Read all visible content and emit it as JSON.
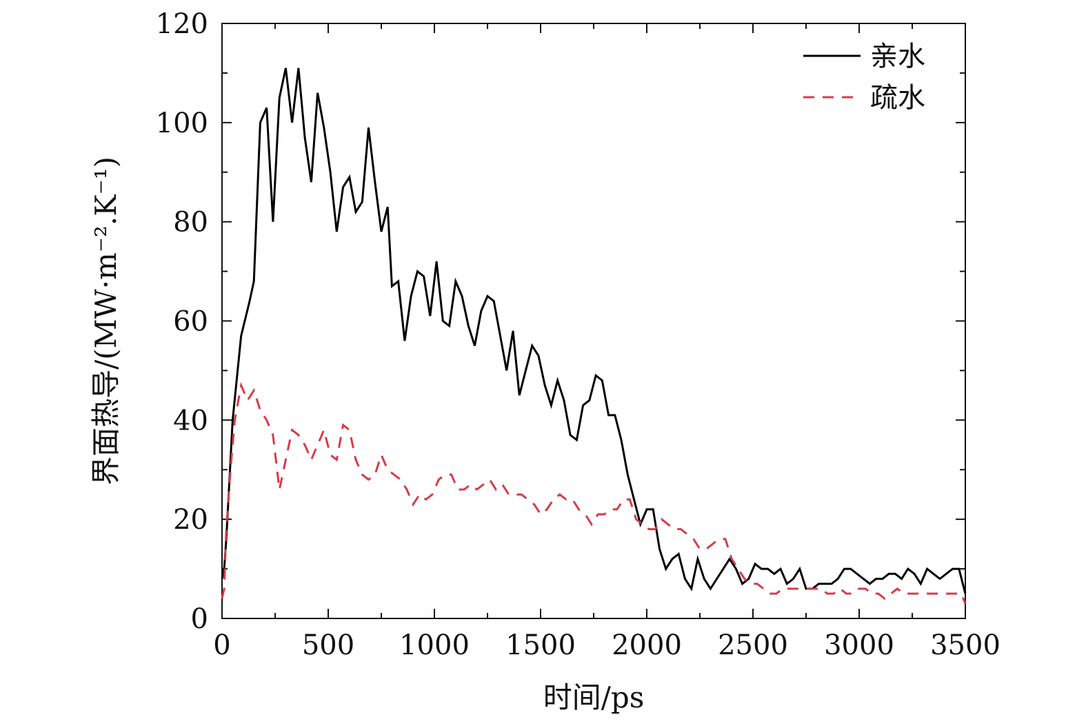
{
  "chart_data": {
    "type": "line",
    "xlabel": "时间/ps",
    "ylabel": "界面热导/(MW·m⁻².K⁻¹)",
    "xlim": [
      0,
      3500
    ],
    "ylim": [
      0,
      120
    ],
    "xticks": [
      0,
      500,
      1000,
      1500,
      2000,
      2500,
      3000,
      3500
    ],
    "yticks": [
      0,
      20,
      40,
      60,
      80,
      100,
      120
    ],
    "grid": false,
    "legend_position": "top-right",
    "series": [
      {
        "name": "亲水",
        "color": "#000000",
        "style": "solid",
        "points": [
          [
            0,
            8
          ],
          [
            10,
            10
          ],
          [
            20,
            16
          ],
          [
            50,
            40
          ],
          [
            90,
            57
          ],
          [
            130,
            64
          ],
          [
            150,
            68
          ],
          [
            180,
            100
          ],
          [
            210,
            103
          ],
          [
            240,
            80
          ],
          [
            270,
            105
          ],
          [
            300,
            111
          ],
          [
            330,
            100
          ],
          [
            360,
            111
          ],
          [
            390,
            97
          ],
          [
            420,
            88
          ],
          [
            450,
            106
          ],
          [
            480,
            99
          ],
          [
            510,
            90
          ],
          [
            540,
            78
          ],
          [
            570,
            87
          ],
          [
            600,
            89
          ],
          [
            630,
            82
          ],
          [
            660,
            84
          ],
          [
            690,
            99
          ],
          [
            720,
            88
          ],
          [
            750,
            78
          ],
          [
            780,
            83
          ],
          [
            800,
            67
          ],
          [
            830,
            68
          ],
          [
            860,
            56
          ],
          [
            890,
            65
          ],
          [
            920,
            70
          ],
          [
            950,
            69
          ],
          [
            980,
            61
          ],
          [
            1010,
            72
          ],
          [
            1040,
            60
          ],
          [
            1070,
            59
          ],
          [
            1100,
            68
          ],
          [
            1130,
            65
          ],
          [
            1160,
            59
          ],
          [
            1190,
            55
          ],
          [
            1220,
            62
          ],
          [
            1250,
            65
          ],
          [
            1280,
            64
          ],
          [
            1310,
            57
          ],
          [
            1340,
            50
          ],
          [
            1370,
            58
          ],
          [
            1400,
            45
          ],
          [
            1430,
            50
          ],
          [
            1460,
            55
          ],
          [
            1490,
            53
          ],
          [
            1520,
            47
          ],
          [
            1550,
            43
          ],
          [
            1580,
            48
          ],
          [
            1610,
            44
          ],
          [
            1640,
            37
          ],
          [
            1670,
            36
          ],
          [
            1700,
            43
          ],
          [
            1730,
            44
          ],
          [
            1760,
            49
          ],
          [
            1790,
            48
          ],
          [
            1820,
            41
          ],
          [
            1850,
            41
          ],
          [
            1880,
            36
          ],
          [
            1910,
            29
          ],
          [
            1940,
            24
          ],
          [
            1970,
            19
          ],
          [
            2000,
            22
          ],
          [
            2030,
            22
          ],
          [
            2060,
            14
          ],
          [
            2090,
            10
          ],
          [
            2120,
            12
          ],
          [
            2150,
            13
          ],
          [
            2180,
            8
          ],
          [
            2210,
            6
          ],
          [
            2240,
            12
          ],
          [
            2270,
            8
          ],
          [
            2300,
            6
          ],
          [
            2330,
            8
          ],
          [
            2360,
            10
          ],
          [
            2390,
            12
          ],
          [
            2420,
            10
          ],
          [
            2450,
            7
          ],
          [
            2480,
            8
          ],
          [
            2510,
            11
          ],
          [
            2540,
            10
          ],
          [
            2570,
            10
          ],
          [
            2600,
            9
          ],
          [
            2630,
            10
          ],
          [
            2660,
            7
          ],
          [
            2690,
            8
          ],
          [
            2720,
            10
          ],
          [
            2750,
            6
          ],
          [
            2780,
            6
          ],
          [
            2810,
            7
          ],
          [
            2840,
            7
          ],
          [
            2870,
            7
          ],
          [
            2900,
            8
          ],
          [
            2930,
            10
          ],
          [
            2960,
            10
          ],
          [
            2990,
            9
          ],
          [
            3020,
            8
          ],
          [
            3050,
            7
          ],
          [
            3080,
            8
          ],
          [
            3110,
            8
          ],
          [
            3140,
            9
          ],
          [
            3170,
            9
          ],
          [
            3200,
            8
          ],
          [
            3230,
            10
          ],
          [
            3260,
            9
          ],
          [
            3290,
            7
          ],
          [
            3320,
            10
          ],
          [
            3350,
            9
          ],
          [
            3380,
            8
          ],
          [
            3410,
            9
          ],
          [
            3440,
            10
          ],
          [
            3470,
            10
          ],
          [
            3500,
            5
          ]
        ]
      },
      {
        "name": "疏水",
        "color": "#d83b47",
        "style": "dashed",
        "points": [
          [
            0,
            4
          ],
          [
            10,
            6
          ],
          [
            20,
            18
          ],
          [
            40,
            30
          ],
          [
            60,
            40
          ],
          [
            90,
            47
          ],
          [
            120,
            44
          ],
          [
            150,
            46
          ],
          [
            180,
            42
          ],
          [
            210,
            40
          ],
          [
            240,
            37
          ],
          [
            270,
            26
          ],
          [
            300,
            32
          ],
          [
            330,
            38
          ],
          [
            360,
            37
          ],
          [
            390,
            35
          ],
          [
            420,
            32
          ],
          [
            450,
            35
          ],
          [
            480,
            38
          ],
          [
            510,
            33
          ],
          [
            540,
            32
          ],
          [
            570,
            39
          ],
          [
            600,
            38
          ],
          [
            630,
            32
          ],
          [
            660,
            29
          ],
          [
            690,
            28
          ],
          [
            720,
            29
          ],
          [
            750,
            33
          ],
          [
            780,
            30
          ],
          [
            810,
            29
          ],
          [
            840,
            28
          ],
          [
            870,
            26
          ],
          [
            900,
            23
          ],
          [
            930,
            25
          ],
          [
            960,
            24
          ],
          [
            990,
            25
          ],
          [
            1020,
            28
          ],
          [
            1050,
            29
          ],
          [
            1080,
            29
          ],
          [
            1110,
            26
          ],
          [
            1140,
            26
          ],
          [
            1170,
            27
          ],
          [
            1200,
            26
          ],
          [
            1230,
            27
          ],
          [
            1260,
            28
          ],
          [
            1290,
            26
          ],
          [
            1320,
            27
          ],
          [
            1350,
            25
          ],
          [
            1380,
            25
          ],
          [
            1410,
            25
          ],
          [
            1440,
            24
          ],
          [
            1470,
            23
          ],
          [
            1500,
            21
          ],
          [
            1530,
            22
          ],
          [
            1560,
            24
          ],
          [
            1590,
            25
          ],
          [
            1620,
            24
          ],
          [
            1650,
            24
          ],
          [
            1680,
            22
          ],
          [
            1710,
            21
          ],
          [
            1740,
            19
          ],
          [
            1770,
            21
          ],
          [
            1800,
            21
          ],
          [
            1830,
            22
          ],
          [
            1860,
            22
          ],
          [
            1890,
            24
          ],
          [
            1920,
            24
          ],
          [
            1950,
            20
          ],
          [
            1980,
            19
          ],
          [
            2010,
            18
          ],
          [
            2040,
            18
          ],
          [
            2070,
            20
          ],
          [
            2100,
            19
          ],
          [
            2130,
            18
          ],
          [
            2160,
            18
          ],
          [
            2190,
            17
          ],
          [
            2220,
            16
          ],
          [
            2250,
            14
          ],
          [
            2280,
            14
          ],
          [
            2310,
            15
          ],
          [
            2340,
            16
          ],
          [
            2370,
            16
          ],
          [
            2400,
            12
          ],
          [
            2430,
            10
          ],
          [
            2460,
            8
          ],
          [
            2490,
            7
          ],
          [
            2520,
            7
          ],
          [
            2550,
            6
          ],
          [
            2580,
            5
          ],
          [
            2610,
            5
          ],
          [
            2640,
            6
          ],
          [
            2670,
            6
          ],
          [
            2700,
            6
          ],
          [
            2730,
            6
          ],
          [
            2760,
            6
          ],
          [
            2790,
            6
          ],
          [
            2820,
            6
          ],
          [
            2850,
            5
          ],
          [
            2880,
            5
          ],
          [
            2910,
            6
          ],
          [
            2940,
            5
          ],
          [
            2970,
            5
          ],
          [
            3000,
            6
          ],
          [
            3030,
            6
          ],
          [
            3060,
            5
          ],
          [
            3090,
            5
          ],
          [
            3120,
            4
          ],
          [
            3150,
            5
          ],
          [
            3180,
            6
          ],
          [
            3210,
            5
          ],
          [
            3240,
            5
          ],
          [
            3270,
            5
          ],
          [
            3300,
            5
          ],
          [
            3330,
            5
          ],
          [
            3360,
            5
          ],
          [
            3390,
            5
          ],
          [
            3420,
            5
          ],
          [
            3450,
            5
          ],
          [
            3480,
            5
          ],
          [
            3500,
            3
          ]
        ]
      }
    ]
  }
}
